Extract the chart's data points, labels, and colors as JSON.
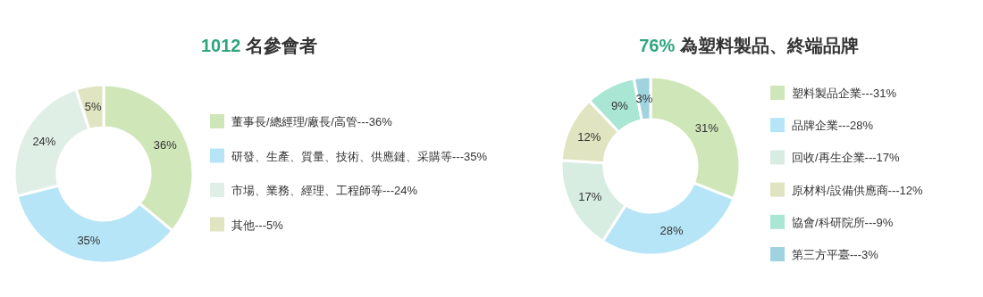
{
  "chart_data": [
    {
      "type": "donut",
      "title": "1012 名參會者",
      "legend": "right",
      "categories": [
        "董事長/總經理/廠長/高管---36%",
        "研發、生產、質量、技術、供應鏈、采購等---35%",
        "市場、業務、經理、工程師等---24%",
        "其他---5%"
      ],
      "values": [
        36,
        35,
        24,
        5
      ],
      "value_labels": [
        "36%",
        "35%",
        "24%",
        "5%"
      ],
      "colors": [
        "#cfe6b8",
        "#b5e5f6",
        "#e0efe6",
        "#e1e4c0"
      ]
    },
    {
      "type": "donut",
      "title": "76% 為塑料製品、終端品牌",
      "legend": "right",
      "categories": [
        "塑料製品企業---31%",
        "品牌企業---28%",
        "回收/再生企業---17%",
        "原材料/設備供應商---12%",
        "協會/科研院所---9%",
        "第三方平臺---3%"
      ],
      "values": [
        31,
        28,
        17,
        12,
        9,
        3
      ],
      "value_labels": [
        "31%",
        "28%",
        "17%",
        "12%",
        "9%",
        "3%"
      ],
      "colors": [
        "#cfe6b8",
        "#b5e5f6",
        "#d8ede2",
        "#e1e4c0",
        "#a9e6d4",
        "#9fd3e0"
      ]
    }
  ]
}
